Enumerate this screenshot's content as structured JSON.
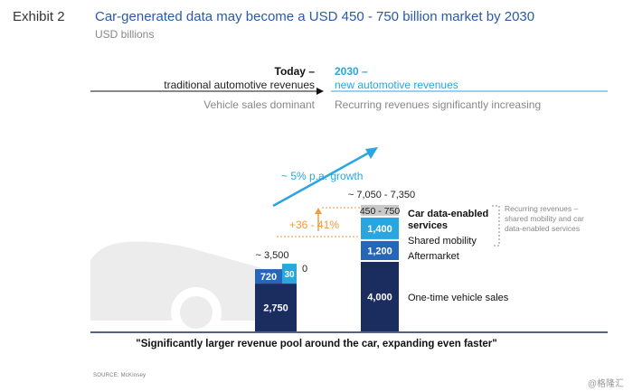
{
  "header": {
    "exhibit": "Exhibit 2",
    "title": "Car-generated data may become a USD 450 - 750 billion market by 2030",
    "units": "USD billions"
  },
  "timeline": {
    "today_label": "Today –",
    "today_sub": "traditional automotive revenues",
    "today_note": "Vehicle sales dominant",
    "future_label": "2030 –",
    "future_sub": "new automotive revenues",
    "future_note": "Recurring revenues significantly increasing"
  },
  "chart_data": {
    "type": "stacked_bar",
    "categories": [
      "Today",
      "2030"
    ],
    "series": [
      {
        "name": "One-time vehicle sales",
        "values": [
          2750,
          4000
        ],
        "labels": [
          "2,750",
          "4,000"
        ],
        "color": "#1b2d5e"
      },
      {
        "name": "Aftermarket",
        "values": [
          720,
          1200
        ],
        "labels": [
          "720",
          "1,200"
        ],
        "color": "#2566b8"
      },
      {
        "name": "Shared mobility",
        "values": [
          30,
          1400
        ],
        "labels": [
          "30",
          "1,400"
        ],
        "color": "#29a6e0"
      },
      {
        "name": "Car data-enabled services",
        "values": [
          0,
          450
        ],
        "labels": [
          "0",
          "450 - 750"
        ],
        "color": "#c8c8c8"
      }
    ],
    "totals": [
      "~ 3,500",
      "~ 7,050 - 7,350"
    ],
    "segment_labels": {
      "one_time": "One-time vehicle sales",
      "aftermarket": "Aftermarket",
      "shared": "Shared mobility",
      "data_services": "Car data-enabled services"
    },
    "today_zero_label": "0",
    "growth_label": "~ 5% p.a. growth",
    "increase_label": "+36 - 41%",
    "bracket_label": "Recurring revenues – shared mobility and car data-enabled services",
    "bracket_lines": [
      "Recurring revenues –",
      "shared mobility and car",
      "data-enabled services"
    ],
    "colors": {
      "navy": "#1b2d5e",
      "mid_blue": "#2566b8",
      "light_blue": "#29a6e0",
      "grey": "#c8c8c8",
      "orange": "#f39a3a"
    }
  },
  "footer": {
    "quote": "\"Significantly larger revenue pool around the car, expanding even faster\"",
    "source": "SOURCE: McKinsey",
    "watermark": "@格隆汇"
  }
}
